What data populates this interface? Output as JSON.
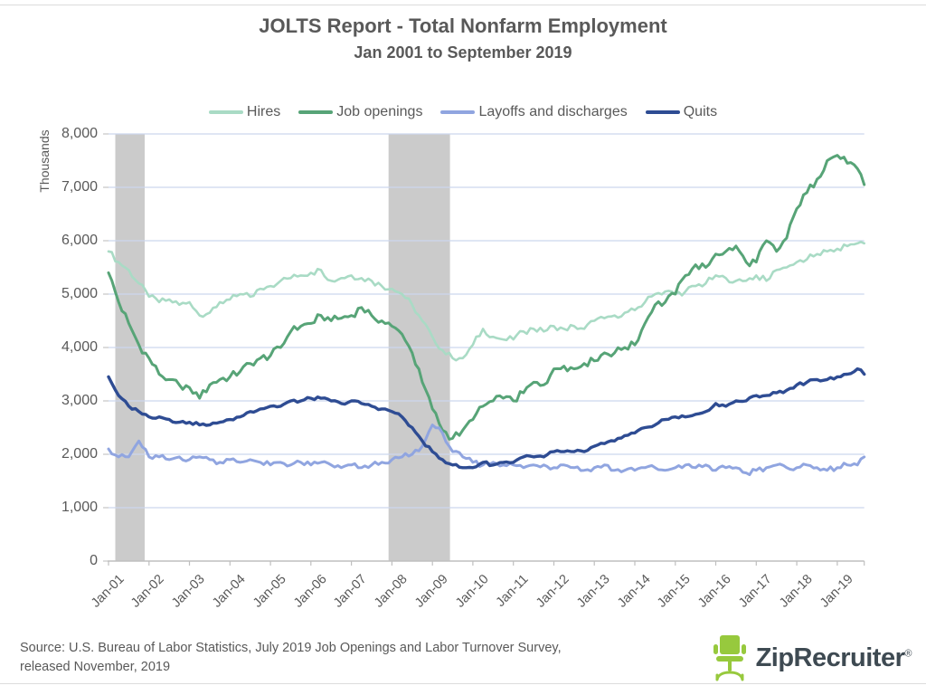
{
  "header": {
    "title": "JOLTS Report - Total Nonfarm Employment",
    "subtitle": "Jan 2001 to September 2019"
  },
  "footer": {
    "source_line1": "Source: U.S. Bureau of Labor Statistics, July 2019 Job Openings and Labor Turnover Survey,",
    "source_line2": "released November, 2019",
    "logo_text": "ZipRecruiter",
    "logo_registered": "®",
    "logo_green": "#97c93d",
    "logo_text_color": "#3e4a52"
  },
  "chart_data": {
    "type": "line",
    "title": "JOLTS Report - Total Nonfarm Employment",
    "subtitle": "Jan 2001 to September 2019",
    "ylabel": "Thousands",
    "xlabel": "",
    "ylim": [
      0,
      8000
    ],
    "grid": "horizontal",
    "legend_position": "top",
    "gridline_color": "#ccd6ee",
    "axis_color": "#bfbfbf",
    "tick_label_color": "#595959",
    "band_color": "#cbcbcb",
    "x_range_months": [
      "Jan-2001",
      "Sep-2019"
    ],
    "x_tick_labels": [
      "Jan-01",
      "Jan-02",
      "Jan-03",
      "Jan-04",
      "Jan-05",
      "Jan-06",
      "Jan-07",
      "Jan-08",
      "Jan-09",
      "Jan-10",
      "Jan-11",
      "Jan-12",
      "Jan-13",
      "Jan-14",
      "Jan-15",
      "Jan-16",
      "Jan-17",
      "Jan-18",
      "Jan-19"
    ],
    "y_ticks": [
      {
        "v": 0,
        "label": "0"
      },
      {
        "v": 1000,
        "label": "1,000"
      },
      {
        "v": 2000,
        "label": "2,000"
      },
      {
        "v": 3000,
        "label": "3,000"
      },
      {
        "v": 4000,
        "label": "4,000"
      },
      {
        "v": 5000,
        "label": "5,000"
      },
      {
        "v": 6000,
        "label": "6,000"
      },
      {
        "v": 7000,
        "label": "7,000"
      },
      {
        "v": 8000,
        "label": "8,000"
      }
    ],
    "recession_bands": [
      {
        "start_month": 2,
        "end_month": 10.7,
        "note": "Mar 2001 - Nov 2001"
      },
      {
        "start_month": 83,
        "end_month": 101.2,
        "note": "Dec 2007 - Jun 2009"
      }
    ],
    "units": "thousands, monthly, month 0 = Jan 2001, month 224 = Sep 2019",
    "sample_months": [
      0,
      3,
      6,
      9,
      12,
      15,
      18,
      21,
      24,
      27,
      30,
      33,
      36,
      39,
      42,
      45,
      48,
      51,
      54,
      57,
      60,
      63,
      66,
      69,
      72,
      75,
      78,
      81,
      84,
      87,
      90,
      93,
      96,
      99,
      102,
      105,
      108,
      111,
      114,
      117,
      120,
      123,
      126,
      129,
      132,
      135,
      138,
      141,
      144,
      147,
      150,
      153,
      156,
      159,
      162,
      165,
      168,
      171,
      174,
      177,
      180,
      183,
      186,
      189,
      192,
      195,
      198,
      201,
      204,
      207,
      210,
      213,
      216,
      219,
      222,
      224
    ],
    "series": [
      {
        "name": "Hires",
        "color": "#a9dbc5",
        "width": 2.6,
        "jitter": 60,
        "values": [
          5800,
          5600,
          5450,
          5200,
          4950,
          4850,
          4900,
          4800,
          4850,
          4600,
          4650,
          4850,
          4900,
          5000,
          4950,
          5100,
          5150,
          5250,
          5300,
          5350,
          5400,
          5450,
          5250,
          5300,
          5350,
          5300,
          5250,
          5150,
          5100,
          5000,
          4800,
          4500,
          4200,
          3950,
          3800,
          3800,
          4050,
          4350,
          4200,
          4150,
          4150,
          4300,
          4350,
          4300,
          4400,
          4350,
          4400,
          4350,
          4500,
          4550,
          4600,
          4650,
          4700,
          4850,
          5000,
          5050,
          5000,
          5050,
          5150,
          5200,
          5350,
          5300,
          5250,
          5250,
          5350,
          5250,
          5450,
          5500,
          5600,
          5650,
          5750,
          5800,
          5850,
          5900,
          5950,
          5950
        ]
      },
      {
        "name": "Job openings",
        "color": "#57a477",
        "width": 3,
        "jitter": 75,
        "values": [
          5400,
          4850,
          4450,
          4050,
          3800,
          3500,
          3400,
          3300,
          3250,
          3050,
          3300,
          3400,
          3450,
          3550,
          3700,
          3800,
          3850,
          4000,
          4300,
          4400,
          4450,
          4600,
          4500,
          4550,
          4600,
          4750,
          4600,
          4500,
          4400,
          4250,
          3900,
          3350,
          2850,
          2450,
          2300,
          2450,
          2650,
          2900,
          3000,
          3050,
          3000,
          3150,
          3350,
          3300,
          3600,
          3650,
          3600,
          3700,
          3750,
          3900,
          3900,
          4000,
          4050,
          4450,
          4800,
          4850,
          5000,
          5350,
          5550,
          5500,
          5750,
          5800,
          5900,
          5600,
          5600,
          6000,
          5800,
          6050,
          6600,
          6900,
          7150,
          7500,
          7600,
          7450,
          7350,
          7050
        ]
      },
      {
        "name": "Layoffs and discharges",
        "color": "#90a5e0",
        "width": 3,
        "jitter": 50,
        "values": [
          2100,
          1950,
          1950,
          2250,
          1950,
          1950,
          1900,
          1950,
          1900,
          1950,
          1900,
          1850,
          1900,
          1850,
          1900,
          1850,
          1800,
          1850,
          1800,
          1850,
          1800,
          1850,
          1800,
          1750,
          1800,
          1750,
          1800,
          1850,
          1900,
          1950,
          2000,
          2150,
          2550,
          2400,
          2050,
          1950,
          1850,
          1800,
          1850,
          1800,
          1800,
          1750,
          1800,
          1800,
          1750,
          1800,
          1750,
          1700,
          1750,
          1800,
          1700,
          1700,
          1700,
          1750,
          1750,
          1700,
          1750,
          1800,
          1750,
          1800,
          1700,
          1750,
          1750,
          1650,
          1700,
          1750,
          1800,
          1750,
          1750,
          1800,
          1750,
          1700,
          1750,
          1800,
          1800,
          1950
        ]
      },
      {
        "name": "Quits",
        "color": "#2e4c93",
        "width": 3.4,
        "jitter": 30,
        "values": [
          3450,
          3100,
          2900,
          2800,
          2700,
          2700,
          2650,
          2600,
          2600,
          2550,
          2550,
          2600,
          2650,
          2700,
          2800,
          2850,
          2900,
          2900,
          3000,
          3000,
          3050,
          3050,
          3000,
          2950,
          3000,
          2950,
          2900,
          2850,
          2800,
          2700,
          2500,
          2250,
          2050,
          1900,
          1800,
          1750,
          1750,
          1850,
          1800,
          1850,
          1850,
          1950,
          1950,
          1950,
          2050,
          2050,
          2050,
          2050,
          2150,
          2200,
          2250,
          2350,
          2400,
          2500,
          2550,
          2650,
          2700,
          2700,
          2750,
          2800,
          2950,
          2900,
          3000,
          3000,
          3100,
          3100,
          3150,
          3200,
          3300,
          3350,
          3400,
          3400,
          3450,
          3500,
          3600,
          3500
        ]
      }
    ]
  }
}
